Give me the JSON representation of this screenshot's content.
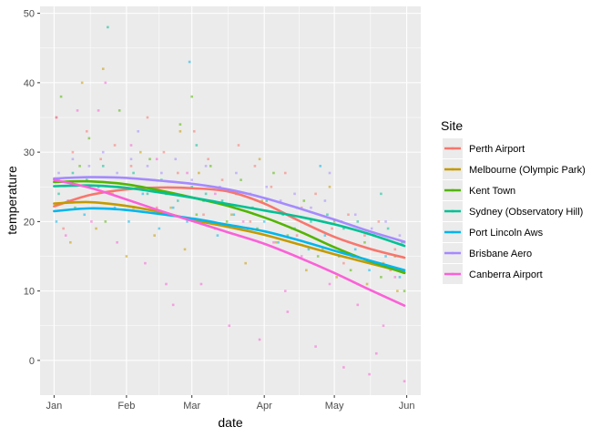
{
  "chart_data": {
    "type": "scatter",
    "xlabel": "date",
    "ylabel": "temperature",
    "x_ticks": [
      "Jan",
      "Feb",
      "Mar",
      "Apr",
      "May",
      "Jun"
    ],
    "x_tick_days": [
      0,
      31,
      59,
      90,
      120,
      151
    ],
    "x_range_days": [
      -6,
      157
    ],
    "y_ticks": [
      0,
      10,
      20,
      30,
      40,
      50
    ],
    "ylim": [
      -5,
      51
    ],
    "grid": true,
    "legend": {
      "title": "Site",
      "position": "right"
    },
    "series": [
      {
        "name": "Perth Airport",
        "color": "#F8766D",
        "smooth": [
          [
            0,
            22.2
          ],
          [
            15,
            23.8
          ],
          [
            30,
            24.6
          ],
          [
            45,
            24.9
          ],
          [
            60,
            24.8
          ],
          [
            75,
            24.3
          ],
          [
            90,
            22.6
          ],
          [
            105,
            20.1
          ],
          [
            120,
            17.8
          ],
          [
            135,
            16.1
          ],
          [
            150,
            14.8
          ]
        ],
        "points": [
          [
            2,
            26
          ],
          [
            8,
            30
          ],
          [
            14,
            33
          ],
          [
            20,
            29
          ],
          [
            26,
            31
          ],
          [
            33,
            28
          ],
          [
            40,
            35
          ],
          [
            47,
            30
          ],
          [
            53,
            27
          ],
          [
            60,
            33
          ],
          [
            66,
            29
          ],
          [
            72,
            26
          ],
          [
            79,
            31
          ],
          [
            86,
            28
          ],
          [
            93,
            25
          ],
          [
            99,
            27
          ],
          [
            106,
            22
          ],
          [
            112,
            24
          ],
          [
            119,
            19
          ],
          [
            126,
            21
          ],
          [
            133,
            18
          ],
          [
            139,
            20
          ],
          [
            146,
            16
          ],
          [
            150,
            17
          ],
          [
            4,
            19
          ],
          [
            24,
            24
          ],
          [
            44,
            22
          ],
          [
            64,
            21
          ],
          [
            84,
            20
          ],
          [
            104,
            18
          ],
          [
            124,
            14
          ],
          [
            144,
            13
          ]
        ]
      },
      {
        "name": "Melbourne (Olympic Park)",
        "color": "#C49A00",
        "smooth": [
          [
            0,
            22.6
          ],
          [
            15,
            22.8
          ],
          [
            30,
            22.3
          ],
          [
            45,
            21.4
          ],
          [
            60,
            20.2
          ],
          [
            75,
            19.2
          ],
          [
            90,
            18.1
          ],
          [
            105,
            16.7
          ],
          [
            120,
            15.3
          ],
          [
            135,
            14.0
          ],
          [
            150,
            12.7
          ]
        ],
        "points": [
          [
            1,
            35
          ],
          [
            7,
            17
          ],
          [
            12,
            40
          ],
          [
            18,
            19
          ],
          [
            25,
            24
          ],
          [
            31,
            15
          ],
          [
            37,
            30
          ],
          [
            43,
            18
          ],
          [
            50,
            22
          ],
          [
            56,
            16
          ],
          [
            62,
            27
          ],
          [
            69,
            19
          ],
          [
            76,
            21
          ],
          [
            82,
            14
          ],
          [
            89,
            23
          ],
          [
            95,
            17
          ],
          [
            102,
            19
          ],
          [
            108,
            13
          ],
          [
            115,
            16
          ],
          [
            121,
            12
          ],
          [
            128,
            15
          ],
          [
            134,
            11
          ],
          [
            141,
            14
          ],
          [
            147,
            10
          ],
          [
            149,
            13
          ],
          [
            21,
            42
          ],
          [
            54,
            33
          ],
          [
            88,
            29
          ],
          [
            118,
            25
          ]
        ]
      },
      {
        "name": "Kent Town",
        "color": "#53B400",
        "smooth": [
          [
            0,
            25.7
          ],
          [
            15,
            25.8
          ],
          [
            30,
            25.4
          ],
          [
            45,
            24.5
          ],
          [
            60,
            23.4
          ],
          [
            75,
            22.2
          ],
          [
            90,
            20.6
          ],
          [
            105,
            18.6
          ],
          [
            120,
            16.3
          ],
          [
            135,
            14.3
          ],
          [
            150,
            12.6
          ]
        ],
        "points": [
          [
            3,
            38
          ],
          [
            9,
            22
          ],
          [
            15,
            32
          ],
          [
            22,
            20
          ],
          [
            28,
            36
          ],
          [
            34,
            22
          ],
          [
            41,
            29
          ],
          [
            48,
            24
          ],
          [
            54,
            34
          ],
          [
            61,
            21
          ],
          [
            67,
            28
          ],
          [
            74,
            20
          ],
          [
            80,
            26
          ],
          [
            87,
            19
          ],
          [
            94,
            27
          ],
          [
            100,
            18
          ],
          [
            107,
            23
          ],
          [
            113,
            15
          ],
          [
            120,
            20
          ],
          [
            127,
            13
          ],
          [
            133,
            17
          ],
          [
            140,
            12
          ],
          [
            146,
            15
          ],
          [
            150,
            10
          ],
          [
            59,
            38
          ],
          [
            11,
            28
          ]
        ]
      },
      {
        "name": "Sydney (Observatory Hill)",
        "color": "#00C094",
        "smooth": [
          [
            0,
            25.1
          ],
          [
            15,
            25.2
          ],
          [
            30,
            24.9
          ],
          [
            45,
            24.2
          ],
          [
            60,
            23.4
          ],
          [
            75,
            22.5
          ],
          [
            90,
            21.6
          ],
          [
            105,
            20.7
          ],
          [
            120,
            19.6
          ],
          [
            135,
            18.2
          ],
          [
            150,
            16.5
          ]
        ],
        "points": [
          [
            2,
            24
          ],
          [
            8,
            27
          ],
          [
            14,
            26
          ],
          [
            21,
            28
          ],
          [
            27,
            25
          ],
          [
            34,
            27
          ],
          [
            40,
            24
          ],
          [
            46,
            26
          ],
          [
            53,
            23
          ],
          [
            59,
            25
          ],
          [
            65,
            24
          ],
          [
            72,
            23
          ],
          [
            78,
            24
          ],
          [
            85,
            22
          ],
          [
            91,
            23
          ],
          [
            98,
            21
          ],
          [
            104,
            22
          ],
          [
            110,
            20
          ],
          [
            117,
            21
          ],
          [
            124,
            19
          ],
          [
            130,
            20
          ],
          [
            137,
            18
          ],
          [
            143,
            19
          ],
          [
            149,
            17
          ],
          [
            23,
            48
          ],
          [
            140,
            24
          ],
          [
            61,
            31
          ]
        ]
      },
      {
        "name": "Port Lincoln Aws",
        "color": "#00B6EB",
        "smooth": [
          [
            0,
            21.5
          ],
          [
            15,
            21.9
          ],
          [
            30,
            21.7
          ],
          [
            45,
            21.1
          ],
          [
            60,
            20.4
          ],
          [
            75,
            19.5
          ],
          [
            90,
            18.6
          ],
          [
            105,
            17.3
          ],
          [
            120,
            15.8
          ],
          [
            135,
            14.4
          ],
          [
            150,
            13.0
          ]
        ],
        "points": [
          [
            1,
            20
          ],
          [
            6,
            23
          ],
          [
            13,
            21
          ],
          [
            19,
            25
          ],
          [
            26,
            22
          ],
          [
            32,
            20
          ],
          [
            38,
            24
          ],
          [
            45,
            19
          ],
          [
            51,
            22
          ],
          [
            57,
            20
          ],
          [
            64,
            23
          ],
          [
            70,
            18
          ],
          [
            77,
            21
          ],
          [
            83,
            19
          ],
          [
            90,
            20
          ],
          [
            96,
            17
          ],
          [
            103,
            19
          ],
          [
            109,
            16
          ],
          [
            116,
            18
          ],
          [
            122,
            15
          ],
          [
            129,
            16
          ],
          [
            135,
            13
          ],
          [
            142,
            15
          ],
          [
            148,
            12
          ],
          [
            58,
            43
          ],
          [
            114,
            28
          ]
        ]
      },
      {
        "name": "Brisbane Aero",
        "color": "#A58AFF",
        "smooth": [
          [
            0,
            26.2
          ],
          [
            15,
            26.4
          ],
          [
            30,
            26.3
          ],
          [
            45,
            25.9
          ],
          [
            60,
            25.4
          ],
          [
            75,
            24.6
          ],
          [
            90,
            23.4
          ],
          [
            105,
            21.9
          ],
          [
            120,
            20.3
          ],
          [
            135,
            18.6
          ],
          [
            150,
            17.1
          ]
        ],
        "points": [
          [
            2,
            27
          ],
          [
            8,
            29
          ],
          [
            15,
            28
          ],
          [
            21,
            30
          ],
          [
            27,
            27
          ],
          [
            33,
            29
          ],
          [
            40,
            28
          ],
          [
            46,
            27
          ],
          [
            52,
            29
          ],
          [
            59,
            26
          ],
          [
            65,
            28
          ],
          [
            71,
            25
          ],
          [
            78,
            27
          ],
          [
            84,
            24
          ],
          [
            91,
            25
          ],
          [
            97,
            23
          ],
          [
            103,
            24
          ],
          [
            110,
            22
          ],
          [
            116,
            23
          ],
          [
            123,
            20
          ],
          [
            129,
            21
          ],
          [
            136,
            19
          ],
          [
            142,
            20
          ],
          [
            148,
            18
          ],
          [
            36,
            33
          ],
          [
            118,
            27
          ]
        ]
      },
      {
        "name": "Canberra Airport",
        "color": "#FB61D7",
        "smooth": [
          [
            0,
            26.0
          ],
          [
            15,
            24.9
          ],
          [
            30,
            23.3
          ],
          [
            45,
            21.6
          ],
          [
            60,
            20.0
          ],
          [
            75,
            18.4
          ],
          [
            90,
            16.8
          ],
          [
            105,
            14.8
          ],
          [
            120,
            12.6
          ],
          [
            135,
            10.2
          ],
          [
            150,
            7.9
          ]
        ],
        "points": [
          [
            1,
            35
          ],
          [
            5,
            18
          ],
          [
            10,
            36
          ],
          [
            16,
            20
          ],
          [
            22,
            40
          ],
          [
            27,
            17
          ],
          [
            33,
            31
          ],
          [
            39,
            14
          ],
          [
            44,
            29
          ],
          [
            51,
            8
          ],
          [
            57,
            27
          ],
          [
            63,
            11
          ],
          [
            69,
            24
          ],
          [
            75,
            5
          ],
          [
            81,
            20
          ],
          [
            88,
            3
          ],
          [
            94,
            17
          ],
          [
            100,
            7
          ],
          [
            106,
            15
          ],
          [
            112,
            2
          ],
          [
            118,
            11
          ],
          [
            124,
            -1
          ],
          [
            130,
            8
          ],
          [
            135,
            -2
          ],
          [
            141,
            5
          ],
          [
            146,
            12
          ],
          [
            150,
            -3
          ],
          [
            48,
            11
          ],
          [
            99,
            10
          ],
          [
            138,
            1
          ],
          [
            19,
            36
          ]
        ]
      }
    ]
  }
}
